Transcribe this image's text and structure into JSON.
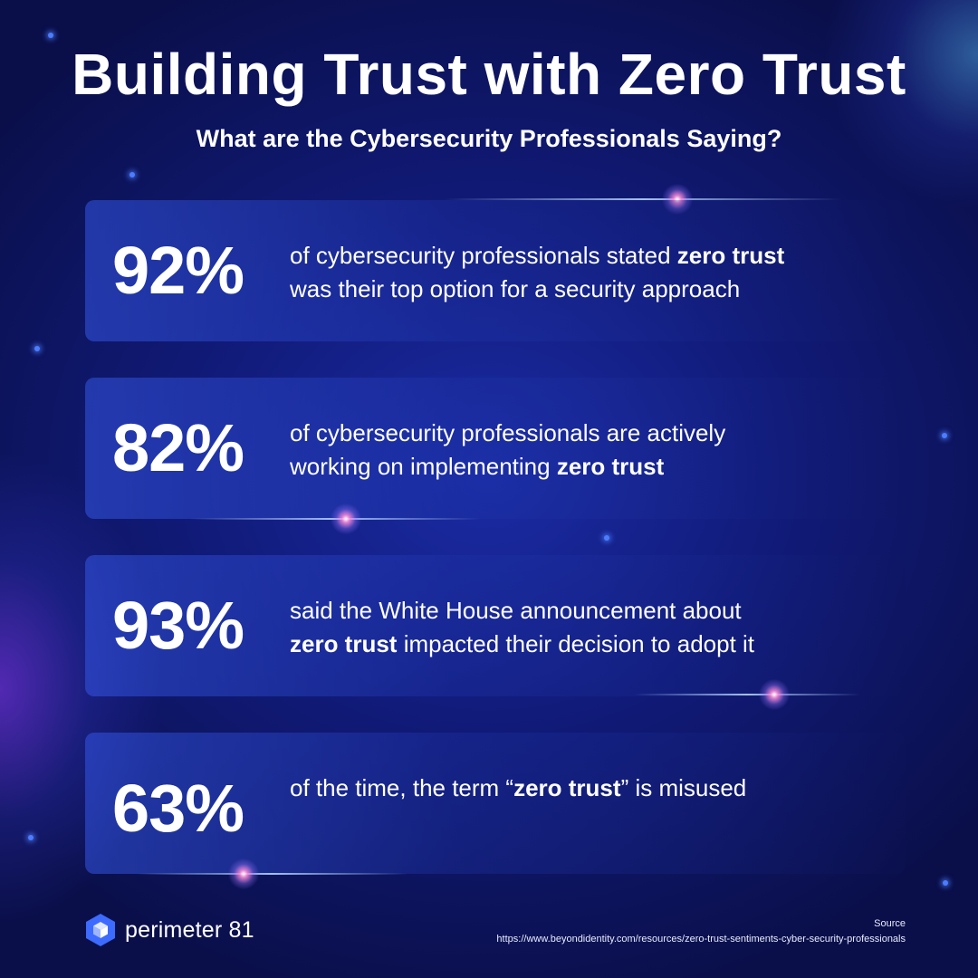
{
  "title": "Building Trust with Zero Trust",
  "subtitle": "What are the Cybersecurity Professionals Saying?",
  "stats": [
    {
      "value": "92%",
      "pre": "of cybersecurity professionals stated ",
      "bold": "zero trust",
      "post": "",
      "line2_pre": "was their top option for a security approach",
      "line2_bold": "",
      "line2_post": ""
    },
    {
      "value": "82%",
      "pre": "of cybersecurity professionals are actively",
      "bold": "",
      "post": "",
      "line2_pre": "working on implementing ",
      "line2_bold": "zero trust",
      "line2_post": ""
    },
    {
      "value": "93%",
      "pre": "said the White House announcement about",
      "bold": "",
      "post": "",
      "line2_pre": "",
      "line2_bold": "zero trust",
      "line2_post": " impacted their decision to adopt it"
    },
    {
      "value": "63%",
      "pre": "of the time, the term “",
      "bold": "zero trust",
      "post": "” is misused",
      "line2_pre": "",
      "line2_bold": "",
      "line2_post": ""
    }
  ],
  "brand": {
    "name": "perimeter 81",
    "icon": "hexagon-cube-logo-icon",
    "color": "#3d6bff"
  },
  "source": {
    "label": "Source",
    "url": "https://www.beyondidentity.com/resources/zero-trust-sentiments-cyber-security-professionals"
  }
}
